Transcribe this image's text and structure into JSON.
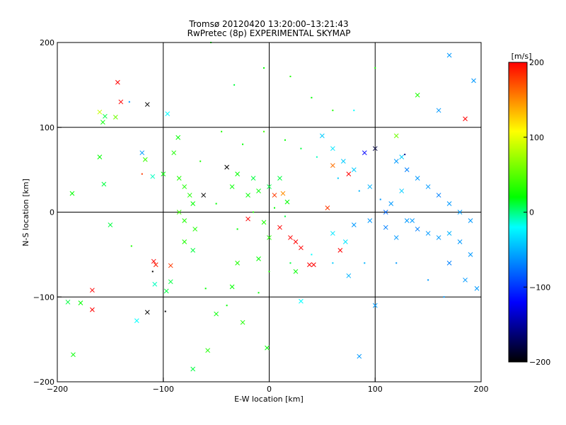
{
  "chart_data": {
    "type": "scatter",
    "title": "Tromsø 20120420 13:20:00–13:21:43",
    "subtitle": "RwPretec (8p) EXPERIMENTAL SKYMAP",
    "xlabel": "E-W location [km]",
    "ylabel": "N-S location [km]",
    "xlim": [
      -200,
      200
    ],
    "ylim": [
      -200,
      200
    ],
    "xticks": [
      -200,
      -100,
      0,
      100,
      200
    ],
    "yticks": [
      -200,
      -100,
      0,
      100,
      200
    ],
    "grid": "lines at ±100 and 0",
    "colorbar": {
      "label": "[m/s]",
      "range": [
        -200,
        200
      ],
      "ticks": [
        200,
        100,
        0,
        -100,
        -200
      ],
      "colors": [
        "#000000",
        "#0000ff",
        "#00ffff",
        "#00ff00",
        "#ffff00",
        "#ff0000"
      ],
      "placement": "right"
    },
    "series": [
      {
        "marker": "cross",
        "points": [
          [
            -160,
            118,
            90
          ],
          [
            -157,
            106,
            20
          ],
          [
            -155,
            113,
            10
          ],
          [
            -145,
            112,
            60
          ],
          [
            -140,
            130,
            200
          ],
          [
            -143,
            153,
            200
          ],
          [
            -115,
            127,
            -200
          ],
          [
            -120,
            70,
            -60
          ],
          [
            -117,
            62,
            40
          ],
          [
            -96,
            116,
            -20
          ],
          [
            -86,
            88,
            20
          ],
          [
            -90,
            70,
            30
          ],
          [
            -100,
            45,
            20
          ],
          [
            -110,
            42,
            -10
          ],
          [
            -85,
            40,
            30
          ],
          [
            -80,
            30,
            30
          ],
          [
            -75,
            20,
            30
          ],
          [
            -72,
            10,
            20
          ],
          [
            -85,
            0,
            40
          ],
          [
            -80,
            -10,
            30
          ],
          [
            -70,
            -20,
            30
          ],
          [
            -72,
            -45,
            10
          ],
          [
            -80,
            -35,
            30
          ],
          [
            -93,
            -63,
            180
          ],
          [
            -97,
            -93,
            10
          ],
          [
            -93,
            -82,
            10
          ],
          [
            -108,
            -85,
            -10
          ],
          [
            -167,
            -92,
            200
          ],
          [
            -167,
            -115,
            200
          ],
          [
            -178,
            -107,
            20
          ],
          [
            -190,
            -106,
            10
          ],
          [
            -185,
            -168,
            20
          ],
          [
            -186,
            22,
            20
          ],
          [
            -160,
            65,
            20
          ],
          [
            -156,
            33,
            10
          ],
          [
            -150,
            -15,
            10
          ],
          [
            -125,
            -128,
            -20
          ],
          [
            -115,
            -118,
            -200
          ],
          [
            -109,
            -58,
            200
          ],
          [
            -107,
            -62,
            190
          ],
          [
            -62,
            20,
            -200
          ],
          [
            -40,
            53,
            -200
          ],
          [
            -35,
            30,
            20
          ],
          [
            -30,
            45,
            20
          ],
          [
            -20,
            20,
            20
          ],
          [
            -15,
            40,
            10
          ],
          [
            -10,
            25,
            20
          ],
          [
            0,
            30,
            10
          ],
          [
            5,
            20,
            180
          ],
          [
            10,
            40,
            10
          ],
          [
            13,
            22,
            150
          ],
          [
            17,
            12,
            20
          ],
          [
            -20,
            -8,
            200
          ],
          [
            -5,
            -12,
            30
          ],
          [
            0,
            -30,
            30
          ],
          [
            10,
            -18,
            200
          ],
          [
            20,
            -30,
            200
          ],
          [
            25,
            -35,
            200
          ],
          [
            30,
            -42,
            200
          ],
          [
            38,
            -62,
            200
          ],
          [
            42,
            -62,
            200
          ],
          [
            25,
            -70,
            20
          ],
          [
            -10,
            -55,
            20
          ],
          [
            -30,
            -60,
            30
          ],
          [
            -35,
            -88,
            20
          ],
          [
            -25,
            -130,
            30
          ],
          [
            -58,
            -163,
            30
          ],
          [
            -50,
            -120,
            20
          ],
          [
            -72,
            -185,
            10
          ],
          [
            -2,
            -160,
            20
          ],
          [
            30,
            -105,
            -20
          ],
          [
            67,
            -45,
            200
          ],
          [
            72,
            -35,
            -30
          ],
          [
            60,
            -25,
            -30
          ],
          [
            80,
            -15,
            -60
          ],
          [
            95,
            -10,
            -60
          ],
          [
            110,
            -18,
            -70
          ],
          [
            120,
            -30,
            -60
          ],
          [
            130,
            -10,
            -60
          ],
          [
            140,
            -20,
            -70
          ],
          [
            150,
            -25,
            -60
          ],
          [
            160,
            -30,
            -60
          ],
          [
            170,
            -25,
            -50
          ],
          [
            180,
            -35,
            -60
          ],
          [
            190,
            -50,
            -60
          ],
          [
            170,
            -60,
            -70
          ],
          [
            185,
            -80,
            -60
          ],
          [
            196,
            -90,
            -60
          ],
          [
            100,
            -110,
            -60
          ],
          [
            85,
            -170,
            -60
          ],
          [
            90,
            70,
            -120
          ],
          [
            100,
            75,
            -180
          ],
          [
            120,
            60,
            -60
          ],
          [
            130,
            50,
            -70
          ],
          [
            140,
            40,
            -60
          ],
          [
            150,
            30,
            -60
          ],
          [
            160,
            20,
            -70
          ],
          [
            170,
            10,
            -60
          ],
          [
            180,
            0,
            -60
          ],
          [
            190,
            -10,
            -60
          ],
          [
            120,
            90,
            60
          ],
          [
            140,
            138,
            30
          ],
          [
            160,
            120,
            -60
          ],
          [
            185,
            110,
            200
          ],
          [
            193,
            155,
            -60
          ],
          [
            170,
            185,
            -60
          ],
          [
            135,
            -10,
            -60
          ],
          [
            110,
            0,
            -80
          ],
          [
            60,
            75,
            -30
          ],
          [
            50,
            90,
            -40
          ],
          [
            70,
            60,
            -40
          ],
          [
            80,
            50,
            -40
          ],
          [
            95,
            30,
            -50
          ],
          [
            60,
            55,
            160
          ],
          [
            75,
            45,
            200
          ],
          [
            55,
            5,
            180
          ],
          [
            125,
            65,
            -40
          ],
          [
            125,
            25,
            -40
          ],
          [
            115,
            10,
            -60
          ],
          [
            75,
            -75,
            -50
          ]
        ]
      },
      {
        "marker": "dot",
        "points": [
          [
            -98,
            -117,
            -200
          ],
          [
            -132,
            130,
            -60
          ],
          [
            -120,
            45,
            180
          ],
          [
            -55,
            200,
            20
          ],
          [
            -33,
            150,
            10
          ],
          [
            -5,
            170,
            20
          ],
          [
            20,
            160,
            30
          ],
          [
            40,
            135,
            20
          ],
          [
            60,
            120,
            30
          ],
          [
            80,
            120,
            -20
          ],
          [
            100,
            170,
            30
          ],
          [
            128,
            68,
            -160
          ],
          [
            -60,
            -90,
            20
          ],
          [
            -40,
            -110,
            20
          ],
          [
            -10,
            -95,
            20
          ],
          [
            0,
            -70,
            30
          ],
          [
            20,
            -60,
            10
          ],
          [
            40,
            -50,
            -20
          ],
          [
            60,
            -60,
            -40
          ],
          [
            90,
            -60,
            -50
          ],
          [
            120,
            -60,
            -60
          ],
          [
            150,
            -80,
            -60
          ],
          [
            165,
            -100,
            -60
          ],
          [
            -110,
            -70,
            -200
          ],
          [
            -130,
            -40,
            30
          ],
          [
            -45,
            95,
            30
          ],
          [
            -25,
            80,
            20
          ],
          [
            -5,
            95,
            40
          ],
          [
            15,
            85,
            20
          ],
          [
            30,
            75,
            10
          ],
          [
            45,
            65,
            -10
          ],
          [
            65,
            40,
            -40
          ],
          [
            85,
            25,
            -50
          ],
          [
            105,
            15,
            -60
          ],
          [
            -65,
            60,
            30
          ],
          [
            -50,
            10,
            20
          ],
          [
            -30,
            -20,
            20
          ],
          [
            -15,
            0,
            30
          ],
          [
            5,
            5,
            20
          ],
          [
            15,
            -5,
            10
          ]
        ]
      }
    ]
  }
}
